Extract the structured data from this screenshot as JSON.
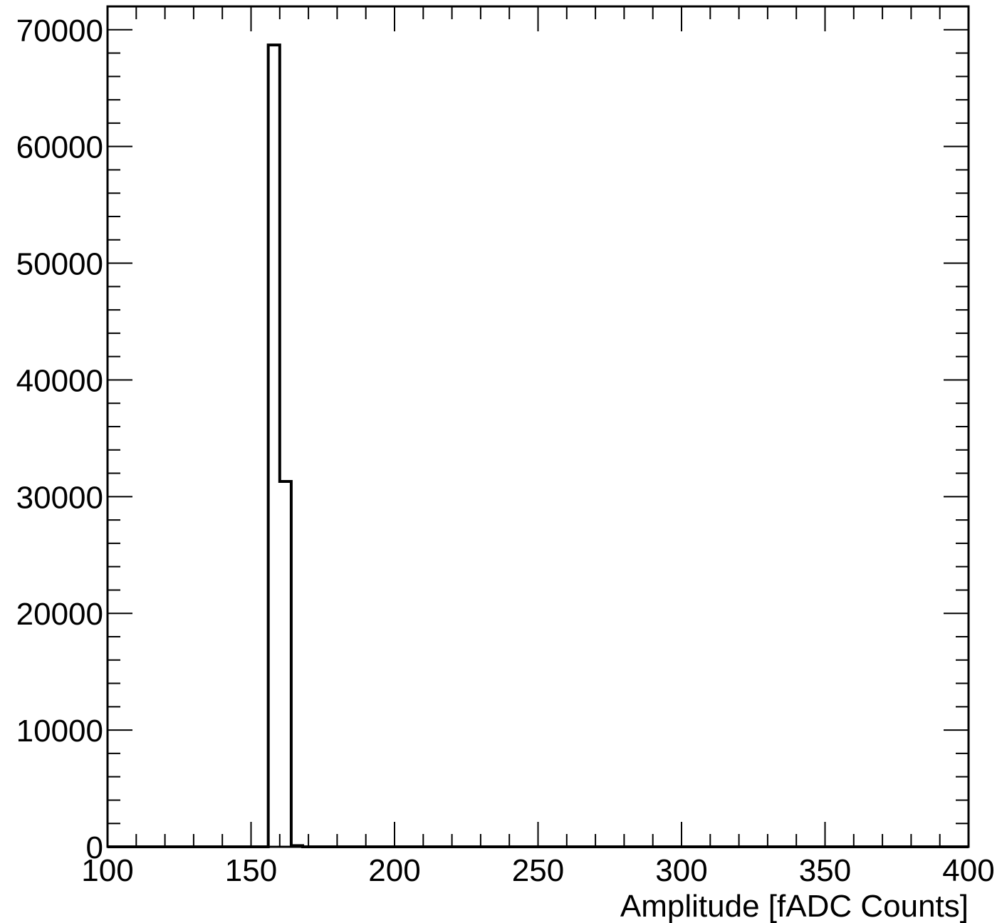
{
  "chart_data": {
    "type": "histogram",
    "title": "",
    "xlabel": "Amplitude [fADC Counts]",
    "ylabel": "",
    "xlim": [
      100,
      400
    ],
    "ylim": [
      0,
      72000
    ],
    "x_ticks": [
      100,
      150,
      200,
      250,
      300,
      350,
      400
    ],
    "x_tick_labels": [
      "100",
      "150",
      "200",
      "250",
      "300",
      "350",
      "400"
    ],
    "y_ticks": [
      0,
      10000,
      20000,
      30000,
      40000,
      50000,
      60000,
      70000
    ],
    "y_tick_labels": [
      "0",
      "10000",
      "20000",
      "30000",
      "40000",
      "50000",
      "60000",
      "70000"
    ],
    "x_minor_step": 10,
    "y_minor_step": 2000,
    "grid": false,
    "legend": "none",
    "bins": [
      {
        "low": 156,
        "high": 160,
        "count": 68700
      },
      {
        "low": 160,
        "high": 164,
        "count": 31300
      },
      {
        "low": 164,
        "high": 168,
        "count": 100
      }
    ],
    "line_color": "#000000"
  }
}
